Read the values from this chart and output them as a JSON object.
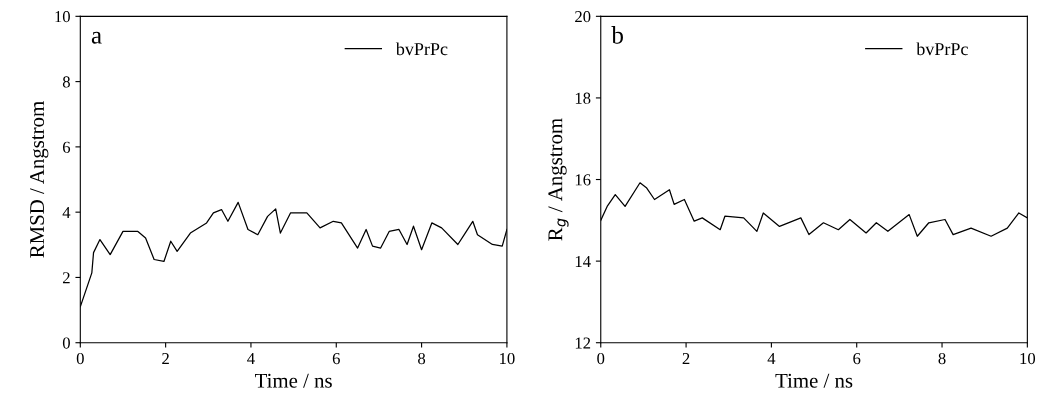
{
  "chart_data": [
    {
      "type": "line",
      "xlabel": "Time / ns",
      "ylabel": "RMSD / Angstrom",
      "annotations": [
        "a"
      ],
      "xlim": [
        0,
        10
      ],
      "ylim": [
        0,
        10
      ],
      "xticks": [
        0,
        2,
        4,
        6,
        8,
        10
      ],
      "yticks": [
        0,
        2,
        4,
        6,
        8,
        10
      ],
      "legend": "top right",
      "marker": "none",
      "line_style": "solid",
      "series": [
        {
          "name": "bvPrPc",
          "color": "#000000",
          "x": [
            0,
            0.27,
            0.31,
            0.46,
            0.7,
            1.0,
            1.35,
            1.53,
            1.73,
            1.96,
            2.12,
            2.27,
            2.58,
            2.96,
            3.12,
            3.31,
            3.46,
            3.7,
            3.93,
            4.16,
            4.39,
            4.58,
            4.69,
            4.93,
            5.31,
            5.62,
            5.93,
            6.12,
            6.5,
            6.7,
            6.85,
            7.04,
            7.24,
            7.47,
            7.66,
            7.81,
            8.0,
            8.24,
            8.47,
            8.85,
            9.0,
            9.2,
            9.31,
            9.66,
            9.89,
            10.0
          ],
          "values": [
            1.1,
            2.14,
            2.76,
            3.16,
            2.7,
            3.41,
            3.41,
            3.21,
            2.55,
            2.49,
            3.11,
            2.8,
            3.36,
            3.67,
            3.98,
            4.08,
            3.72,
            4.3,
            3.47,
            3.31,
            3.87,
            4.1,
            3.36,
            3.98,
            3.98,
            3.52,
            3.72,
            3.67,
            2.9,
            3.47,
            2.96,
            2.9,
            3.41,
            3.47,
            3.01,
            3.57,
            2.85,
            3.67,
            3.52,
            3.01,
            3.31,
            3.72,
            3.31,
            3.01,
            2.96,
            3.47
          ]
        }
      ]
    },
    {
      "type": "line",
      "xlabel": "Time / ns",
      "ylabel": "R$_{g}$ / Angstrom",
      "annotations": [
        "b"
      ],
      "xlim": [
        0,
        10
      ],
      "ylim": [
        12,
        20
      ],
      "xticks": [
        0,
        2,
        4,
        6,
        8,
        10
      ],
      "yticks": [
        12,
        14,
        16,
        18,
        20
      ],
      "legend": "top right",
      "marker": "none",
      "line_style": "solid",
      "series": [
        {
          "name": "bvPrPc",
          "color": "#000000",
          "x": [
            0,
            0.15,
            0.34,
            0.57,
            0.92,
            1.07,
            1.26,
            1.61,
            1.72,
            1.96,
            2.19,
            2.38,
            2.8,
            2.91,
            3.35,
            3.66,
            3.81,
            4.19,
            4.69,
            4.88,
            5.22,
            5.57,
            5.84,
            6.22,
            6.46,
            6.73,
            7.23,
            7.42,
            7.69,
            8.07,
            8.26,
            8.68,
            9.15,
            9.53,
            9.8,
            10.0
          ],
          "values": [
            15.0,
            15.34,
            15.63,
            15.34,
            15.92,
            15.8,
            15.51,
            15.75,
            15.39,
            15.51,
            14.98,
            15.06,
            14.77,
            15.1,
            15.06,
            14.73,
            15.18,
            14.85,
            15.06,
            14.65,
            14.94,
            14.77,
            15.02,
            14.69,
            14.94,
            14.73,
            15.14,
            14.61,
            14.94,
            15.02,
            14.65,
            14.81,
            14.61,
            14.81,
            15.18,
            15.06
          ]
        }
      ]
    }
  ]
}
